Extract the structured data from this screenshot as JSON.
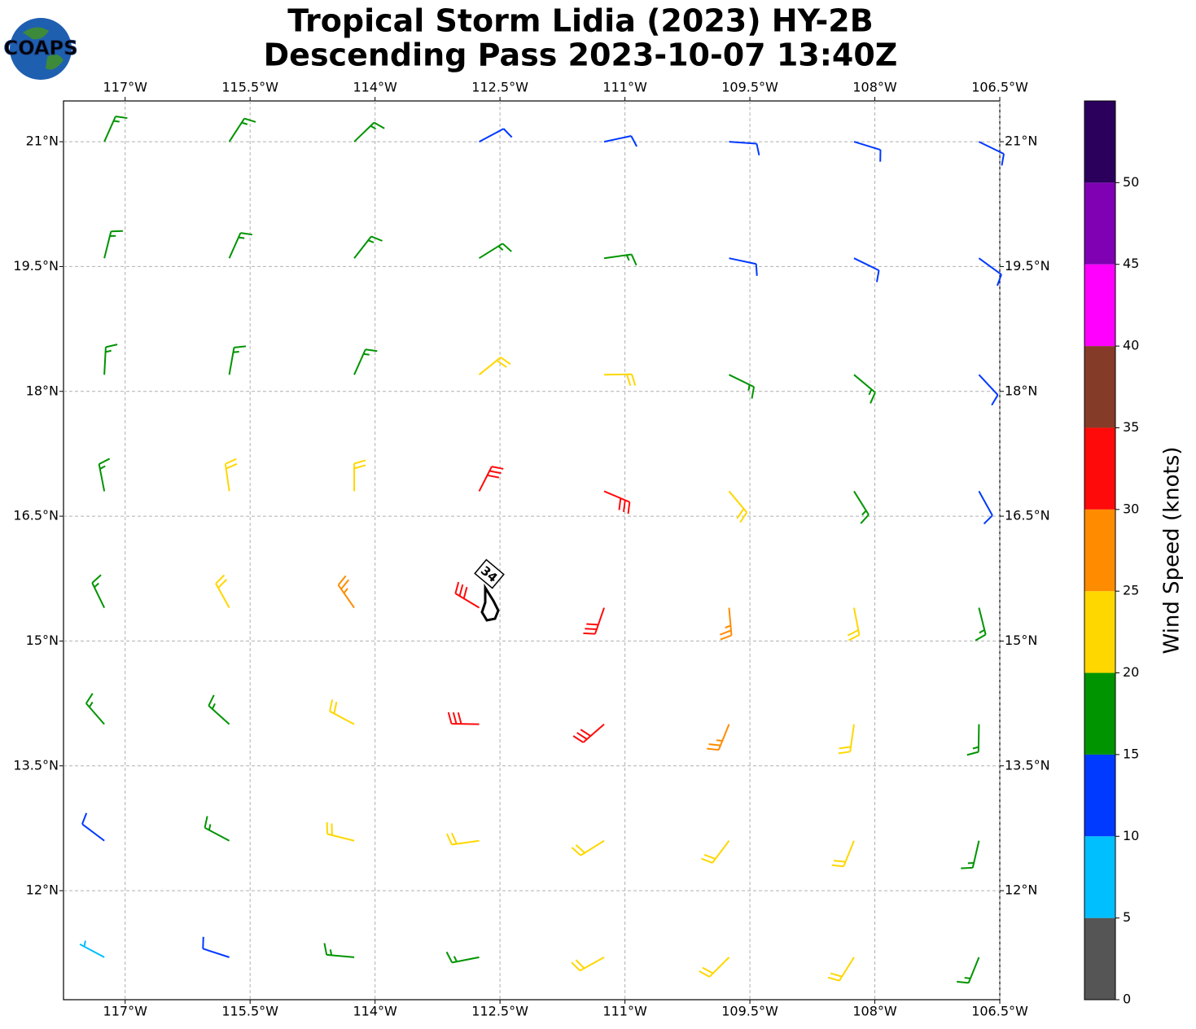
{
  "logo": "COAPS",
  "chart_data": {
    "type": "barbs",
    "title": [
      "Tropical Storm Lidia (2023) HY-2B",
      "Descending Pass 2023-10-07 13:40Z"
    ],
    "xlim": [
      -117.74,
      -106.5
    ],
    "ylim": [
      10.69,
      21.49
    ],
    "xticks": [
      {
        "value": -117,
        "label": "117°W"
      },
      {
        "value": -115.5,
        "label": "115.5°W"
      },
      {
        "value": -114,
        "label": "114°W"
      },
      {
        "value": -112.5,
        "label": "112.5°W"
      },
      {
        "value": -111,
        "label": "111°W"
      },
      {
        "value": -109.5,
        "label": "109.5°W"
      },
      {
        "value": -108,
        "label": "108°W"
      },
      {
        "value": -106.5,
        "label": "106.5°W"
      }
    ],
    "yticks": [
      {
        "value": 21,
        "label": "21°N"
      },
      {
        "value": 19.5,
        "label": "19.5°N"
      },
      {
        "value": 18,
        "label": "18°N"
      },
      {
        "value": 16.5,
        "label": "16.5°N"
      },
      {
        "value": 15,
        "label": "15°N"
      },
      {
        "value": 13.5,
        "label": "13.5°N"
      },
      {
        "value": 12,
        "label": "12°N"
      }
    ],
    "grid": true,
    "barbs": {
      "lon": [
        -117.25,
        -115.75,
        -114.25,
        -112.75,
        -111.25,
        -109.75,
        -108.25,
        -106.75
      ],
      "lat": [
        21.0,
        19.6,
        18.2,
        16.8,
        15.4,
        14.0,
        12.6,
        11.2
      ],
      "speed": [
        [
          16,
          16,
          15,
          13,
          12,
          12,
          11,
          12
        ],
        [
          17,
          18,
          17,
          18,
          16,
          14,
          13,
          12
        ],
        [
          18,
          19,
          19,
          22,
          24,
          19,
          15,
          13
        ],
        [
          18,
          21,
          24,
          33,
          32,
          24,
          17,
          13
        ],
        [
          17,
          22,
          28,
          33,
          32,
          26,
          20,
          15
        ],
        [
          15,
          19,
          24,
          32,
          31,
          25,
          22,
          18
        ],
        [
          13,
          17,
          20,
          24,
          24,
          23,
          21,
          18
        ],
        [
          9,
          12,
          16,
          19,
          22,
          23,
          22,
          17
        ]
      ],
      "direction": [
        [
          24,
          33,
          46,
          62,
          78,
          94,
          107,
          116
        ],
        [
          14,
          24,
          38,
          58,
          82,
          102,
          116,
          126
        ],
        [
          3,
          10,
          24,
          51,
          89,
          116,
          130,
          137
        ],
        [
          349,
          352,
          0,
          27,
          113,
          140,
          148,
          151
        ],
        [
          334,
          331,
          325,
          301,
          199,
          175,
          169,
          166
        ],
        [
          319,
          312,
          298,
          271,
          229,
          202,
          188,
          181
        ],
        [
          307,
          298,
          284,
          262,
          238,
          217,
          202,
          193
        ],
        [
          298,
          288,
          275,
          259,
          241,
          225,
          212,
          202
        ]
      ]
    },
    "annotation": "34",
    "colorbar": {
      "label": "Wind Speed (knots)",
      "bins": [
        0,
        5,
        10,
        15,
        20,
        25,
        30,
        35,
        40,
        45,
        50,
        55
      ],
      "colors": [
        "#555555",
        "#00bfff",
        "#0039ff",
        "#009400",
        "#ffd700",
        "#ff8c00",
        "#ff0a0a",
        "#843c28",
        "#ff00ff",
        "#8000b4",
        "#2a005c"
      ],
      "ticks": [
        0,
        5,
        10,
        15,
        20,
        25,
        30,
        35,
        40,
        45,
        50
      ]
    }
  }
}
